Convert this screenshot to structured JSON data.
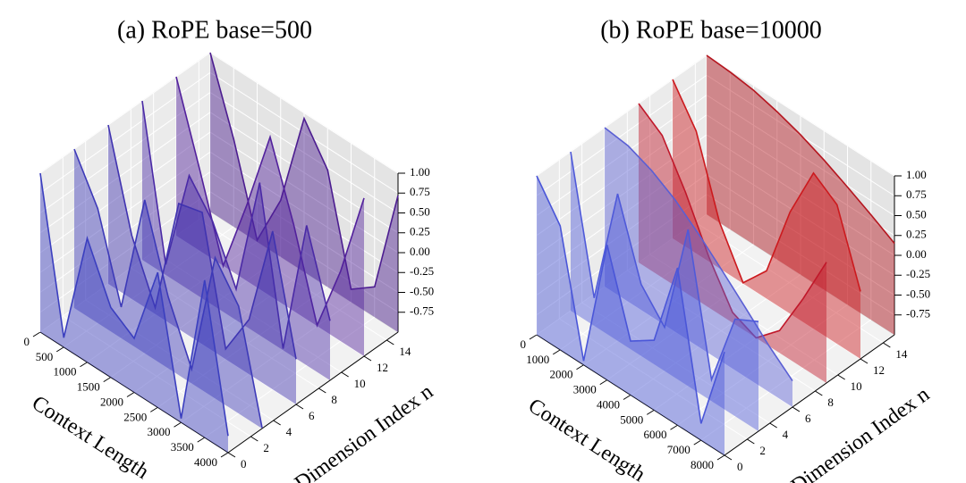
{
  "chart_data": [
    {
      "type": "surface3d",
      "title": "(a) RoPE  base=500",
      "xlabel": "Context Length",
      "ylabel": "Dimension Index n",
      "xlim": [
        0,
        4000
      ],
      "ylim": [
        0,
        15
      ],
      "zlim": [
        -1,
        1
      ],
      "xticks": [
        0,
        500,
        1000,
        1500,
        2000,
        2500,
        3000,
        3500,
        4000
      ],
      "yticks": [
        0,
        2,
        4,
        6,
        8,
        10,
        12,
        14
      ],
      "zticks": [
        -0.75,
        {
          "value": -0.5,
          "label": "-0.50"
        },
        -0.25,
        {
          "value": 0,
          "label": "0.00"
        },
        0.25,
        {
          "value": 0.5,
          "label": "0.50"
        },
        0.75,
        {
          "value": 1,
          "label": "1.00"
        }
      ],
      "surface": {
        "n": [
          0,
          3,
          6,
          9,
          12,
          15
        ],
        "x": [
          0,
          500,
          1000,
          1500,
          2000,
          2500,
          3000,
          3500,
          4000
        ],
        "z": [
          [
            1,
            -0.88,
            0.56,
            -0.12,
            -0.32,
            0.7,
            -0.95,
            0.98,
            -0.79
          ],
          [
            1,
            0.44,
            -0.61,
            0.93,
            -0.1,
            -0.82,
            0.77,
            0.35,
            -0.99
          ],
          [
            1,
            -0.2,
            -0.92,
            0.58,
            0.66,
            -0.87,
            -0.31,
            0.99,
            -0.43
          ],
          [
            1,
            -0.87,
            0.44,
            0.05,
            -0.61,
            0.92,
            -0.98,
            0.76,
            -0.25
          ],
          [
            1,
            0.02,
            -1.0,
            -0.05,
            1.0,
            0.09,
            -0.99,
            -0.12,
            0.99
          ],
          [
            1,
            0.1,
            -0.98,
            -0.29,
            0.93,
            0.47,
            -0.84,
            -0.62,
            0.72
          ]
        ],
        "colors": [
          "#3b3fbf",
          "#3d3ab8",
          "#4033b0",
          "#4a2aa6",
          "#52219c",
          "#4c1d90"
        ]
      }
    },
    {
      "type": "surface3d",
      "title": "(b) RoPE  base=10000",
      "xlabel": "Context Length",
      "ylabel": "Dimension Index n",
      "xlim": [
        0,
        8000
      ],
      "ylim": [
        0,
        15
      ],
      "zlim": [
        -1,
        1
      ],
      "xticks": [
        0,
        1000,
        2000,
        3000,
        4000,
        5000,
        6000,
        7000,
        8000
      ],
      "yticks": [
        0,
        2,
        4,
        6,
        8,
        10,
        12,
        14
      ],
      "zticks": [
        -0.75,
        {
          "value": -0.5,
          "label": "-0.50"
        },
        -0.25,
        {
          "value": 0,
          "label": "0.00"
        },
        0.25,
        {
          "value": 0.5,
          "label": "0.50"
        },
        0.75,
        {
          "value": 1,
          "label": "1.00"
        }
      ],
      "surface": {
        "n": [
          0,
          3,
          6,
          9,
          12,
          15
        ],
        "x": [
          0,
          1000,
          2000,
          3000,
          4000,
          5000,
          6000,
          7000,
          8000
        ],
        "z": [
          [
            1,
            0.56,
            -0.95,
            0.7,
            -0.32,
            -0.12,
            0.98,
            -0.79,
            0.3
          ],
          [
            1,
            -0.65,
            0.85,
            -0.1,
            -0.45,
            0.97,
            -0.73,
            0.22,
            0.38
          ],
          [
            1,
            0.96,
            0.84,
            0.66,
            0.42,
            0.15,
            -0.13,
            -0.42,
            -0.67
          ],
          [
            1,
            0.79,
            0.26,
            -0.37,
            -0.87,
            -1.0,
            -0.72,
            -0.13,
            0.52
          ],
          [
            1,
            0.54,
            -0.42,
            -0.99,
            -0.65,
            0.28,
            0.96,
            0.75,
            -0.15
          ],
          [
            1,
            0.98,
            0.94,
            0.86,
            0.76,
            0.63,
            0.48,
            0.32,
            0.15
          ]
        ],
        "colors": [
          "#4a56d8",
          "#4f5ad9",
          "#5a5fd4",
          "#c0182a",
          "#cc1a1e",
          "#b5161f"
        ]
      }
    }
  ]
}
